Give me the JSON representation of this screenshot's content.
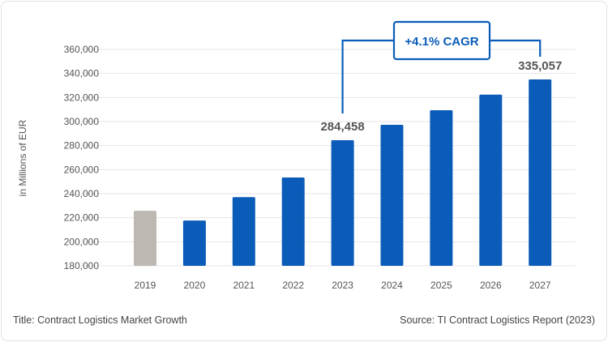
{
  "chart_data": {
    "type": "bar",
    "categories": [
      "2019",
      "2020",
      "2021",
      "2022",
      "2023",
      "2024",
      "2025",
      "2026",
      "2027"
    ],
    "values": [
      225800,
      217700,
      237100,
      253500,
      284458,
      297300,
      309400,
      322400,
      335057
    ],
    "bar_colors": [
      "#bdb8b1",
      "#0a5cb8",
      "#0a5cb8",
      "#0a5cb8",
      "#0a5cb8",
      "#0a5cb8",
      "#0a5cb8",
      "#0a5cb8",
      "#0a5cb8"
    ],
    "data_labels": {
      "2023": "284,458",
      "2027": "335,057"
    },
    "ylabel": "in Millions of EUR",
    "ylim": [
      180000,
      360000
    ],
    "yticks": [
      "180,000",
      "200,000",
      "220,000",
      "240,000",
      "260,000",
      "280,000",
      "300,000",
      "320,000",
      "340,000",
      "360,000"
    ],
    "grid": true,
    "annotation": "+4.1% CAGR",
    "accent_color": "#0a5cb8"
  },
  "footer": {
    "title": "Title: Contract Logistics Market Growth",
    "source": "Source: TI Contract Logistics Report (2023)"
  }
}
